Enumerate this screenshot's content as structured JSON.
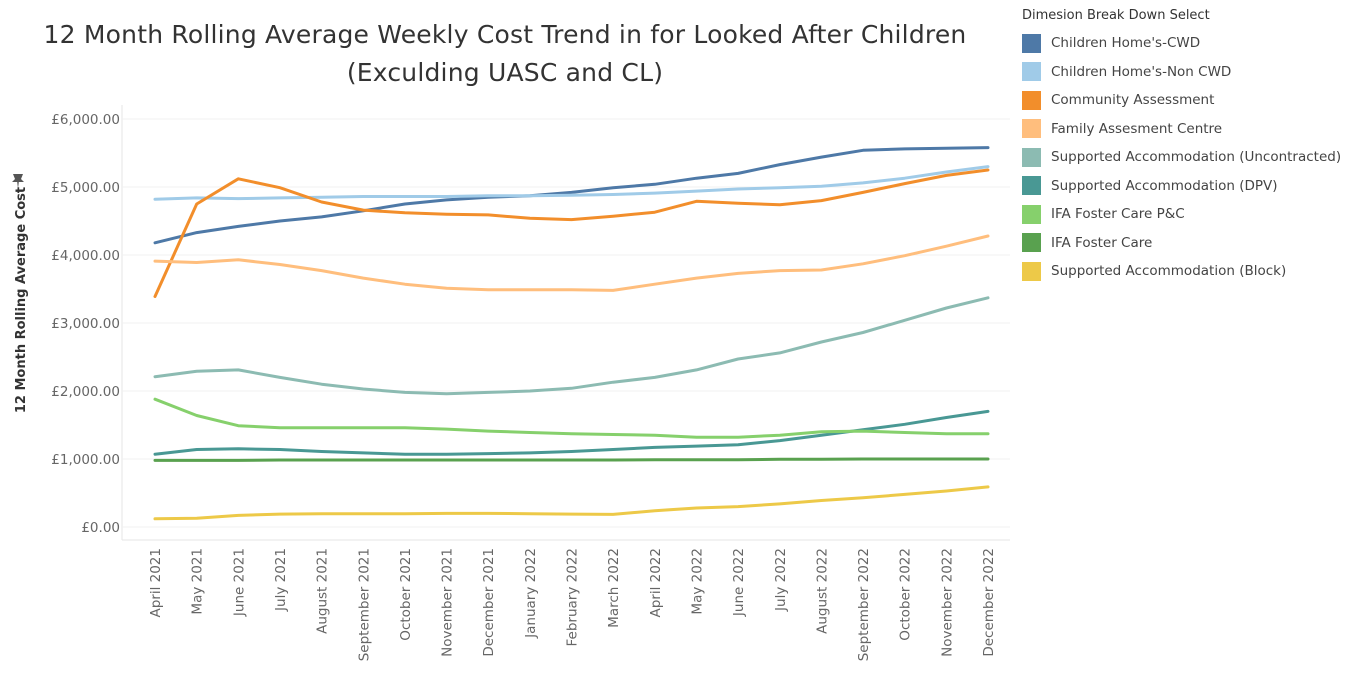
{
  "chart_data": {
    "type": "line",
    "title": "12 Month Rolling Average Weekly Cost Trend in for Looked After Children",
    "subtitle": "(Exculding UASC and CL)",
    "ylabel": "12 Month Rolling Average Cost",
    "xlabel": "",
    "ylim": [
      0,
      6000
    ],
    "yticks": [
      "£0.00",
      "£1,000.00",
      "£2,000.00",
      "£3,000.00",
      "£4,000.00",
      "£5,000.00",
      "£6,000.00"
    ],
    "ytick_values": [
      0,
      1000,
      2000,
      3000,
      4000,
      5000,
      6000
    ],
    "grid": true,
    "legend_title": "Dimesion Break Down Select",
    "legend_position": "right",
    "categories": [
      "April 2021",
      "May 2021",
      "June 2021",
      "July 2021",
      "August 2021",
      "September 2021",
      "October 2021",
      "November 2021",
      "December 2021",
      "January 2022",
      "February 2022",
      "March 2022",
      "April 2022",
      "May 2022",
      "June 2022",
      "July 2022",
      "August 2022",
      "September 2022",
      "October 2022",
      "November 2022",
      "December 2022"
    ],
    "series": [
      {
        "name": "Children Home's-CWD",
        "color": "#4e79a7",
        "values": [
          4180,
          4330,
          4420,
          4500,
          4560,
          4650,
          4750,
          4810,
          4850,
          4870,
          4920,
          4990,
          5040,
          5130,
          5200,
          5330,
          5440,
          5540,
          5560,
          5570,
          5580
        ]
      },
      {
        "name": "Children Home's-Non CWD",
        "color": "#a0cbe8",
        "values": [
          4820,
          4840,
          4830,
          4840,
          4850,
          4860,
          4860,
          4860,
          4870,
          4870,
          4880,
          4890,
          4910,
          4940,
          4970,
          4990,
          5010,
          5060,
          5130,
          5220,
          5300
        ]
      },
      {
        "name": "Community Assessment",
        "color": "#f28e2b",
        "values": [
          3390,
          4750,
          5120,
          4990,
          4780,
          4660,
          4620,
          4600,
          4590,
          4540,
          4520,
          4570,
          4630,
          4790,
          4760,
          4740,
          4800,
          4920,
          5050,
          5170,
          5250
        ]
      },
      {
        "name": "Family Assesment Centre",
        "color": "#ffbe7d",
        "values": [
          3910,
          3890,
          3930,
          3860,
          3770,
          3660,
          3570,
          3510,
          3490,
          3490,
          3490,
          3480,
          3570,
          3660,
          3730,
          3770,
          3780,
          3870,
          3990,
          4130,
          4280
        ]
      },
      {
        "name": "Supported Accommodation (Uncontracted)",
        "color": "#8cbbb2",
        "values": [
          2210,
          2290,
          2310,
          2200,
          2100,
          2030,
          1980,
          1960,
          1980,
          2000,
          2040,
          2130,
          2200,
          2310,
          2470,
          2560,
          2720,
          2860,
          3040,
          3220,
          3370
        ]
      },
      {
        "name": "Supported Accommodation (DPV)",
        "color": "#499894",
        "values": [
          1070,
          1140,
          1150,
          1140,
          1110,
          1090,
          1070,
          1070,
          1080,
          1090,
          1110,
          1140,
          1170,
          1190,
          1210,
          1270,
          1350,
          1430,
          1510,
          1610,
          1700
        ]
      },
      {
        "name": "IFA Foster Care P&C",
        "color": "#86d06c",
        "values": [
          1880,
          1640,
          1490,
          1460,
          1460,
          1460,
          1460,
          1440,
          1410,
          1390,
          1370,
          1360,
          1350,
          1320,
          1320,
          1350,
          1400,
          1410,
          1390,
          1370,
          1370
        ]
      },
      {
        "name": "IFA Foster Care",
        "color": "#59a14f",
        "values": [
          980,
          980,
          980,
          985,
          985,
          985,
          985,
          985,
          985,
          985,
          985,
          985,
          990,
          990,
          990,
          995,
          995,
          1000,
          1000,
          1000,
          1000
        ]
      },
      {
        "name": "Supported Accommodation (Block)",
        "color": "#edc948",
        "values": [
          120,
          130,
          170,
          190,
          195,
          195,
          195,
          200,
          200,
          195,
          190,
          185,
          240,
          280,
          300,
          340,
          390,
          430,
          480,
          530,
          590
        ]
      }
    ]
  }
}
